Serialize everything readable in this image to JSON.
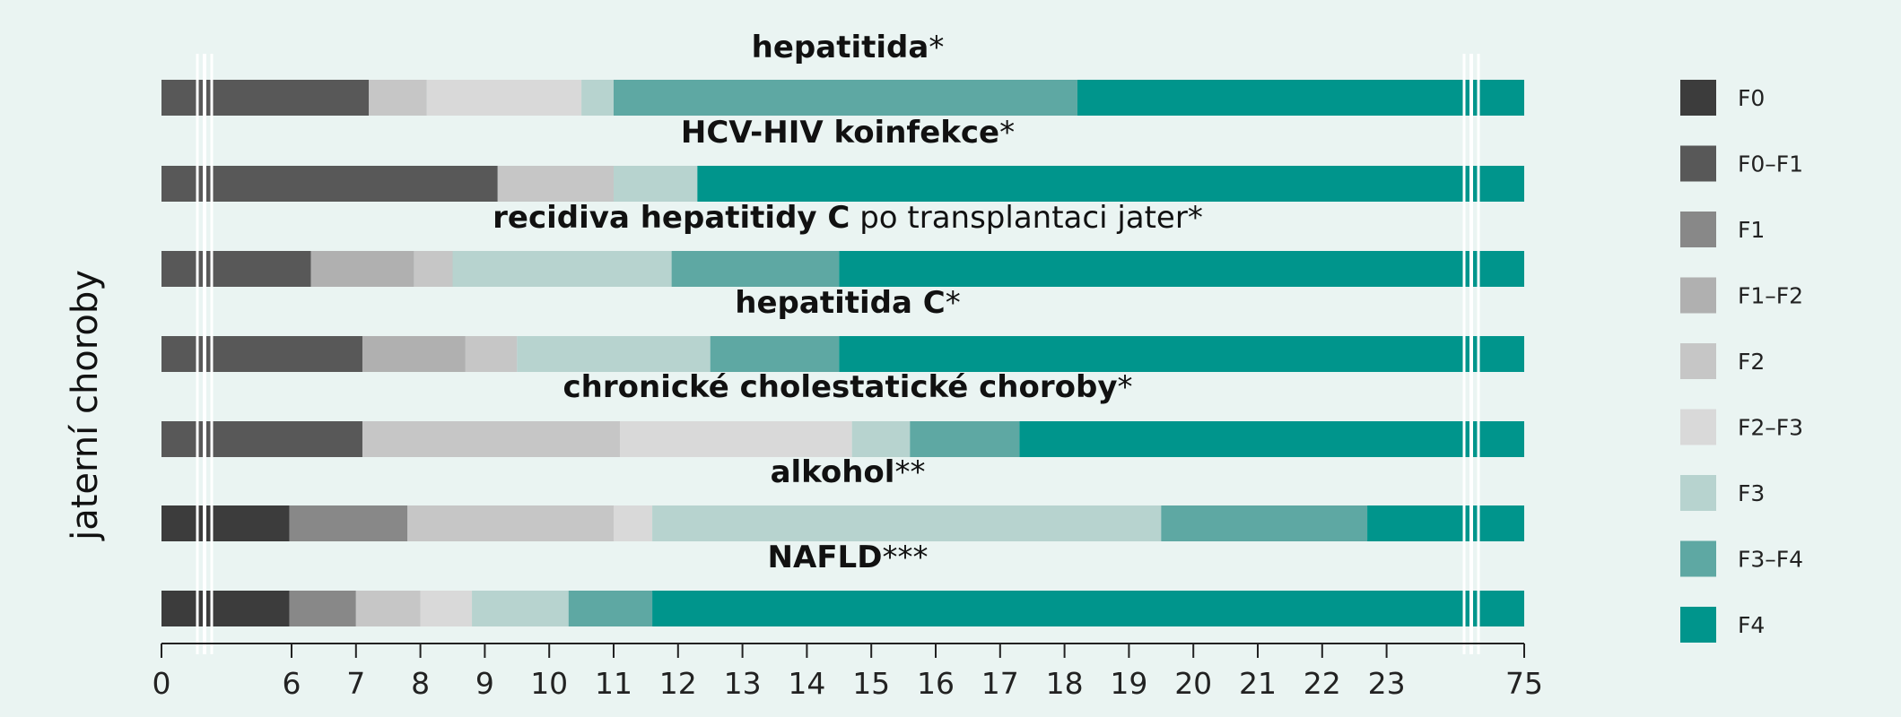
{
  "chart_data": {
    "type": "bar",
    "orientation": "horizontal",
    "stacked": true,
    "ylabel": "jaterní choroby",
    "x_ticks": [
      "0",
      "6",
      "7",
      "8",
      "9",
      "10",
      "11",
      "12",
      "13",
      "14",
      "15",
      "16",
      "17",
      "18",
      "19",
      "20",
      "21",
      "22",
      "23",
      "75"
    ],
    "x_axis_breaks": [
      "0–6",
      "23–75"
    ],
    "legend_position": "right",
    "legend": [
      {
        "label": "F0",
        "color": "#3c3c3c"
      },
      {
        "label": "F0–F1",
        "color": "#585858"
      },
      {
        "label": "F1",
        "color": "#888888"
      },
      {
        "label": "F1–F2",
        "color": "#b0b0b0"
      },
      {
        "label": "F2",
        "color": "#c6c6c6"
      },
      {
        "label": "F2–F3",
        "color": "#d9d9d9"
      },
      {
        "label": "F3",
        "color": "#b7d3cf"
      },
      {
        "label": "F3–F4",
        "color": "#5ea8a3"
      },
      {
        "label": "F4",
        "color": "#00958c"
      }
    ],
    "rows": [
      {
        "title_bold": "hepatitida",
        "title_normal": "",
        "title_mark": "*",
        "segments": [
          {
            "stage": "F0–F1",
            "from": 0,
            "to": 7.2
          },
          {
            "stage": "F2",
            "from": 7.2,
            "to": 8.1
          },
          {
            "stage": "F2–F3",
            "from": 8.1,
            "to": 10.5
          },
          {
            "stage": "F3",
            "from": 10.5,
            "to": 11.0
          },
          {
            "stage": "F3–F4",
            "from": 11.0,
            "to": 18.2
          },
          {
            "stage": "F4",
            "from": 18.2,
            "to": 75
          }
        ]
      },
      {
        "title_bold": "HCV-HIV koinfekce",
        "title_normal": "",
        "title_mark": "*",
        "segments": [
          {
            "stage": "F0–F1",
            "from": 0,
            "to": 9.2
          },
          {
            "stage": "F2",
            "from": 9.2,
            "to": 11.0
          },
          {
            "stage": "F3",
            "from": 11.0,
            "to": 12.3
          },
          {
            "stage": "F4",
            "from": 12.3,
            "to": 75
          }
        ]
      },
      {
        "title_bold": "recidiva hepatitidy C",
        "title_normal": " po transplantaci jater",
        "title_mark": "*",
        "segments": [
          {
            "stage": "F0–F1",
            "from": 0,
            "to": 6.3
          },
          {
            "stage": "F1–F2",
            "from": 6.3,
            "to": 7.9
          },
          {
            "stage": "F2",
            "from": 7.9,
            "to": 8.5
          },
          {
            "stage": "F3",
            "from": 8.5,
            "to": 11.9
          },
          {
            "stage": "F3–F4",
            "from": 11.9,
            "to": 14.5
          },
          {
            "stage": "F4",
            "from": 14.5,
            "to": 75
          }
        ]
      },
      {
        "title_bold": "hepatitida C",
        "title_normal": "",
        "title_mark": "*",
        "segments": [
          {
            "stage": "F0–F1",
            "from": 0,
            "to": 7.1
          },
          {
            "stage": "F1–F2",
            "from": 7.1,
            "to": 8.7
          },
          {
            "stage": "F2",
            "from": 8.7,
            "to": 9.5
          },
          {
            "stage": "F3",
            "from": 9.5,
            "to": 12.5
          },
          {
            "stage": "F3–F4",
            "from": 12.5,
            "to": 14.5
          },
          {
            "stage": "F4",
            "from": 14.5,
            "to": 75
          }
        ]
      },
      {
        "title_bold": "chronické cholestatické choroby",
        "title_normal": "",
        "title_mark": "*",
        "segments": [
          {
            "stage": "F0–F1",
            "from": 0,
            "to": 7.1
          },
          {
            "stage": "F2",
            "from": 7.1,
            "to": 11.1
          },
          {
            "stage": "F2–F3",
            "from": 11.1,
            "to": 14.7
          },
          {
            "stage": "F3",
            "from": 14.7,
            "to": 15.6
          },
          {
            "stage": "F3–F4",
            "from": 15.6,
            "to": 17.3
          },
          {
            "stage": "F4",
            "from": 17.3,
            "to": 75
          }
        ]
      },
      {
        "title_bold": "alkohol",
        "title_normal": "",
        "title_mark": "**",
        "segments": [
          {
            "stage": "F0",
            "from": 0,
            "to": 5.9
          },
          {
            "stage": "F1",
            "from": 5.9,
            "to": 7.8
          },
          {
            "stage": "F2",
            "from": 7.8,
            "to": 11.0
          },
          {
            "stage": "F2–F3",
            "from": 11.0,
            "to": 11.6
          },
          {
            "stage": "F3",
            "from": 11.6,
            "to": 19.5
          },
          {
            "stage": "F3–F4",
            "from": 19.5,
            "to": 22.7
          },
          {
            "stage": "F4",
            "from": 22.7,
            "to": 75
          }
        ]
      },
      {
        "title_bold": "NAFLD",
        "title_normal": "",
        "title_mark": "***",
        "segments": [
          {
            "stage": "F0",
            "from": 0,
            "to": 5.9
          },
          {
            "stage": "F1",
            "from": 5.9,
            "to": 7.0
          },
          {
            "stage": "F2",
            "from": 7.0,
            "to": 8.0
          },
          {
            "stage": "F2–F3",
            "from": 8.0,
            "to": 8.8
          },
          {
            "stage": "F3",
            "from": 8.8,
            "to": 10.3
          },
          {
            "stage": "F3–F4",
            "from": 10.3,
            "to": 11.6
          },
          {
            "stage": "F4",
            "from": 11.6,
            "to": 75
          }
        ]
      }
    ]
  }
}
